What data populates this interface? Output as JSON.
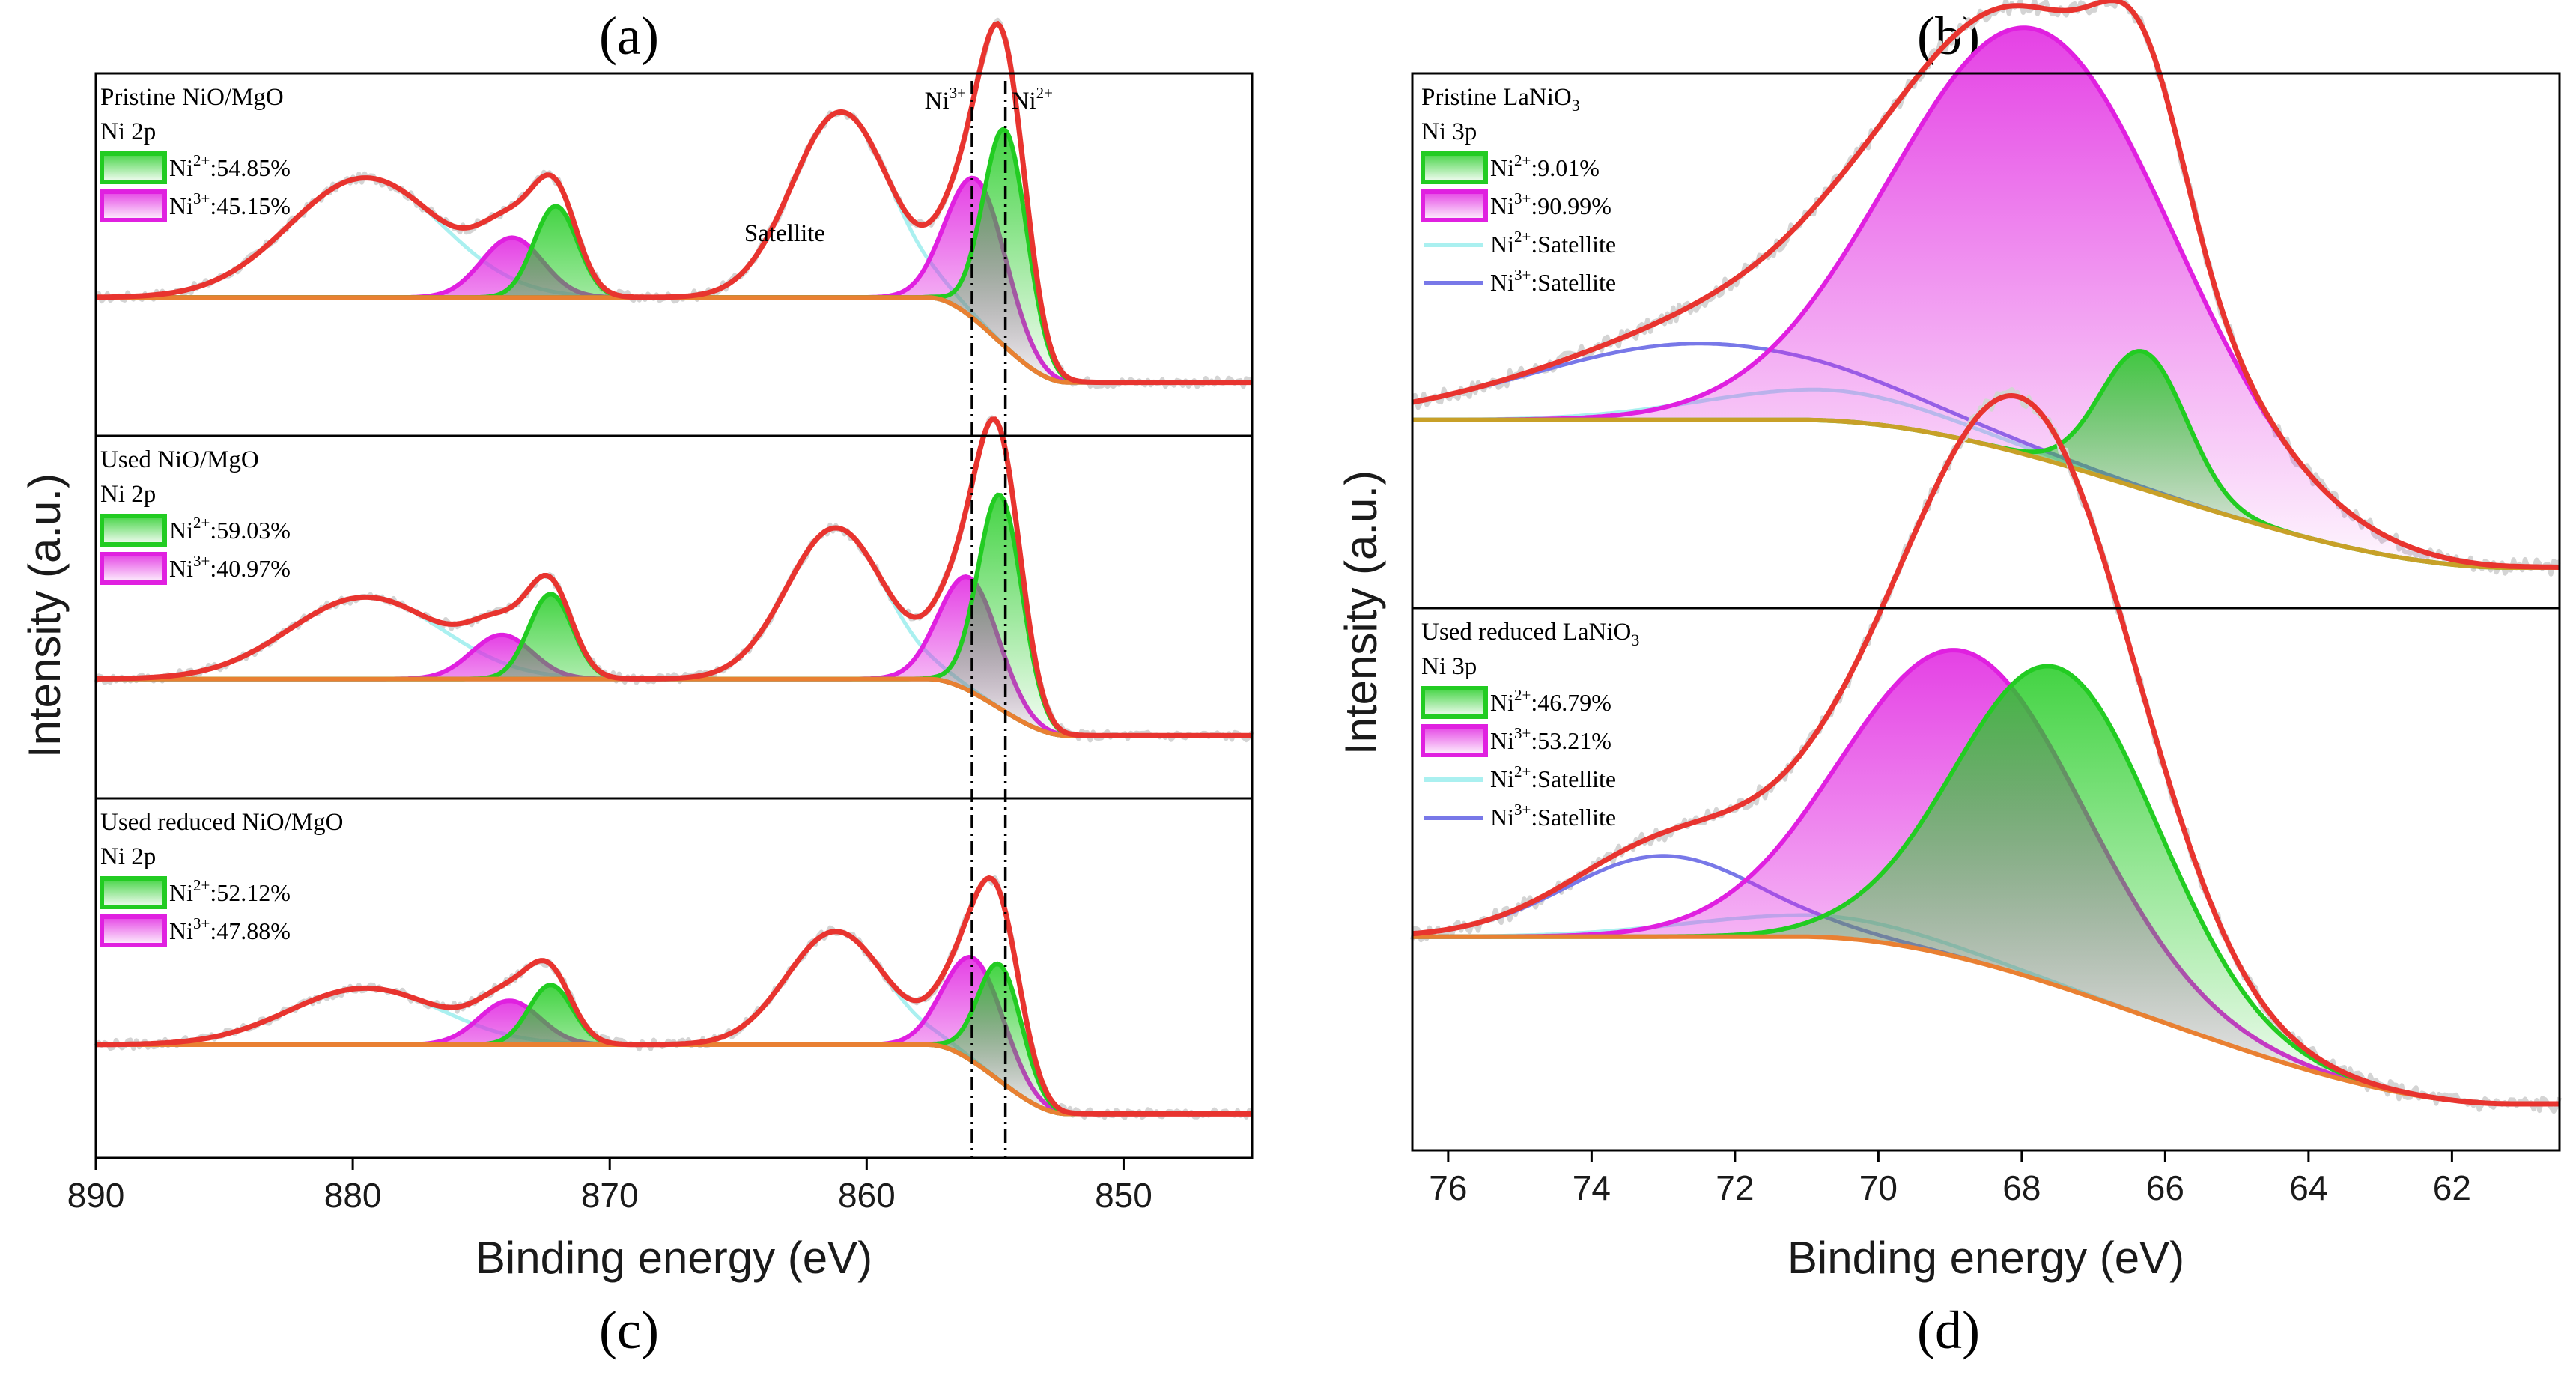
{
  "figure": {
    "panel_letters": [
      "(a)",
      "(b)",
      "(c)",
      "(d)"
    ]
  },
  "chart_data": [
    {
      "id": "left",
      "type": "line",
      "title": "",
      "xlabel": "Binding energy (eV)",
      "ylabel": "Intensity (a.u.)",
      "xlim": [
        890,
        845
      ],
      "x_ticks": [
        890,
        880,
        870,
        860,
        850
      ],
      "reference_lines": [
        {
          "label": "Ni3+",
          "x": 855.9
        },
        {
          "label": "Ni2+",
          "x": 854.6
        }
      ],
      "satellite_label": "Satellite",
      "colors": {
        "envelope": "#e8342f",
        "background": "#e98032",
        "ni2": "#22cc22",
        "ni3": "#e020e0",
        "sat": "#aaf0f0",
        "raw": "#d4d4d4"
      },
      "stacks": [
        {
          "title": "Pristine NiO/MgO",
          "orbital": "Ni 2p",
          "legend": [
            {
              "ion": "Ni",
              "charge": "2+",
              "value": ":54.85%"
            },
            {
              "ion": "Ni",
              "charge": "3+",
              "value": ":45.15%"
            }
          ],
          "background": {
            "start": 0.34,
            "end": 0.07
          },
          "components": {
            "ni2": [
              {
                "center": 854.6,
                "fwhm": 2.0,
                "amp": 0.69
              },
              {
                "center": 872.1,
                "fwhm": 2.0,
                "amp": 0.29
              }
            ],
            "ni3": [
              {
                "center": 855.7,
                "fwhm": 2.7,
                "amp": 0.45
              },
              {
                "center": 873.8,
                "fwhm": 2.8,
                "amp": 0.19
              }
            ],
            "sat": [
              {
                "center": 861.0,
                "fwhm": 4.5,
                "amp": 0.59
              },
              {
                "center": 879.5,
                "fwhm": 7.0,
                "amp": 0.38
              }
            ]
          }
        },
        {
          "title": "Used NiO/MgO",
          "orbital": "Ni 2p",
          "legend": [
            {
              "ion": "Ni",
              "charge": "2+",
              "value": ":59.03%"
            },
            {
              "ion": "Ni",
              "charge": "3+",
              "value": ":40.97%"
            }
          ],
          "background": {
            "start": 0.27,
            "end": 0.09
          },
          "components": {
            "ni2": [
              {
                "center": 854.8,
                "fwhm": 2.0,
                "amp": 0.68
              },
              {
                "center": 872.3,
                "fwhm": 2.0,
                "amp": 0.27
              }
            ],
            "ni3": [
              {
                "center": 856.0,
                "fwhm": 2.7,
                "amp": 0.36
              },
              {
                "center": 874.2,
                "fwhm": 2.8,
                "amp": 0.14
              }
            ],
            "sat": [
              {
                "center": 861.2,
                "fwhm": 4.5,
                "amp": 0.48
              },
              {
                "center": 879.5,
                "fwhm": 7.0,
                "amp": 0.26
              }
            ]
          }
        },
        {
          "title": "Used reduced NiO/MgO",
          "orbital": "Ni 2p",
          "legend": [
            {
              "ion": "Ni",
              "charge": "2+",
              "value": ":52.12%"
            },
            {
              "ion": "Ni",
              "charge": "3+",
              "value": ":47.88%"
            }
          ],
          "background": {
            "start": 0.25,
            "end": 0.03
          },
          "components": {
            "ni2": [
              {
                "center": 854.8,
                "fwhm": 2.0,
                "amp": 0.37
              },
              {
                "center": 872.3,
                "fwhm": 2.0,
                "amp": 0.19
              }
            ],
            "ni3": [
              {
                "center": 855.8,
                "fwhm": 2.7,
                "amp": 0.33
              },
              {
                "center": 873.9,
                "fwhm": 2.8,
                "amp": 0.14
              }
            ],
            "sat": [
              {
                "center": 861.2,
                "fwhm": 4.5,
                "amp": 0.36
              },
              {
                "center": 879.5,
                "fwhm": 7.0,
                "amp": 0.18
              }
            ]
          }
        }
      ]
    },
    {
      "id": "right",
      "type": "line",
      "title": "",
      "xlabel": "Binding energy (eV)",
      "ylabel": "Intensity (a.u.)",
      "xlim": [
        76.5,
        60.5
      ],
      "x_ticks": [
        76,
        74,
        72,
        70,
        68,
        66,
        64,
        62
      ],
      "colors": {
        "envelope": "#e8342f",
        "background": "#e98032",
        "background_alt": "#c8a028",
        "ni2": "#22cc22",
        "ni3": "#e020e0",
        "ni2_sat": "#aaf0f0",
        "ni3_sat": "#7878e8",
        "raw": "#d4d4d4"
      },
      "stacks": [
        {
          "title_main": "Pristine LaNiO",
          "title_sub": "3",
          "orbital": "Ni 3p",
          "legend": [
            {
              "ion": "Ni",
              "charge": "2+",
              "value": ":9.01%"
            },
            {
              "ion": "Ni",
              "charge": "3+",
              "value": ":90.99%"
            },
            {
              "ion": "Ni",
              "charge": "2+",
              "value": ":Satellite"
            },
            {
              "ion": "Ni",
              "charge": "3+",
              "value": ":Satellite"
            }
          ],
          "background": {
            "start": 0.29,
            "end": 0.0
          },
          "components": {
            "ni2": [
              {
                "center": 66.3,
                "fwhm": 1.4,
                "amp": 0.27
              }
            ],
            "ni3": [
              {
                "center": 67.8,
                "fwhm": 4.6,
                "amp": 0.84
              }
            ],
            "ni2_sat": [
              {
                "center": 70.8,
                "fwhm": 4.0,
                "amp": 0.06
              }
            ],
            "ni3_sat": [
              {
                "center": 72.5,
                "fwhm": 5.5,
                "amp": 0.15
              }
            ]
          }
        },
        {
          "title_main": "Used reduced LaNiO",
          "title_sub": "3",
          "orbital": "Ni 3p",
          "legend": [
            {
              "ion": "Ni",
              "charge": "2+",
              "value": ":46.79%"
            },
            {
              "ion": "Ni",
              "charge": "3+",
              "value": ":53.21%"
            },
            {
              "ion": "Ni",
              "charge": "2+",
              "value": ":Satellite"
            },
            {
              "ion": "Ni",
              "charge": "3+",
              "value": ":Satellite"
            }
          ],
          "background": {
            "start": 0.31,
            "end": 0.0
          },
          "components": {
            "ni2": [
              {
                "center": 67.5,
                "fwhm": 3.3,
                "amp": 0.59
              }
            ],
            "ni3": [
              {
                "center": 68.8,
                "fwhm": 3.9,
                "amp": 0.57
              }
            ],
            "ni2_sat": [
              {
                "center": 71.0,
                "fwhm": 4.0,
                "amp": 0.04
              }
            ],
            "ni3_sat": [
              {
                "center": 73.0,
                "fwhm": 3.2,
                "amp": 0.15
              }
            ]
          }
        }
      ]
    }
  ]
}
